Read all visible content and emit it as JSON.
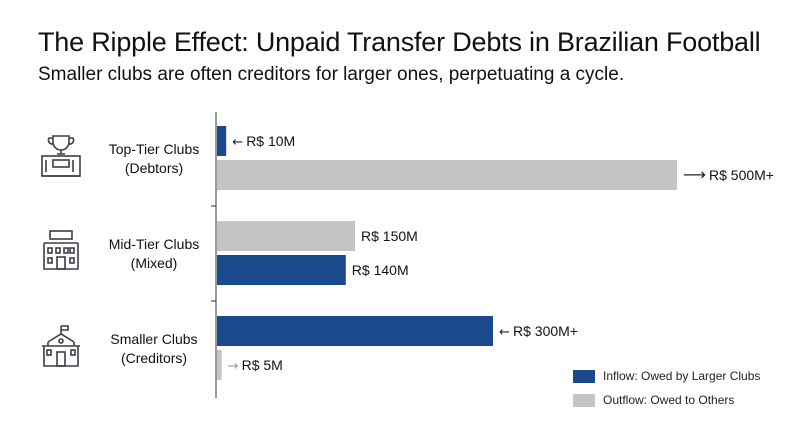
{
  "title": "The Ripple Effect: Unpaid Transfer Debts in Brazilian Football",
  "subtitle": "Smaller clubs are often creditors for larger ones, perpetuating a cycle.",
  "colors": {
    "inflow": "#1b4a8c",
    "outflow": "#c4c4c4",
    "axis": "#333333",
    "icon": "#3a3f47"
  },
  "chart_data": {
    "type": "bar",
    "orientation": "horizontal",
    "categories": [
      {
        "name": "Top-Tier Clubs",
        "sub": "(Debtors)",
        "icon": "trophy-building-icon"
      },
      {
        "name": "Mid-Tier Clubs",
        "sub": "(Mixed)",
        "icon": "stadium-building-icon"
      },
      {
        "name": "Smaller Clubs",
        "sub": "(Creditors)",
        "icon": "school-building-icon"
      }
    ],
    "bars": [
      {
        "category": 0,
        "series": "inflow",
        "value": 10,
        "label": "R$ 10M",
        "arrow": "←"
      },
      {
        "category": 0,
        "series": "outflow",
        "value": 500,
        "label": "R$ 500M+",
        "arrow": "⟶"
      },
      {
        "category": 1,
        "series": "outflow",
        "value": 150,
        "label": "R$ 150M",
        "arrow": ""
      },
      {
        "category": 1,
        "series": "inflow",
        "value": 140,
        "label": "R$ 140M",
        "arrow": ""
      },
      {
        "category": 2,
        "series": "inflow",
        "value": 300,
        "label": "R$ 300M+",
        "arrow": "←"
      },
      {
        "category": 2,
        "series": "outflow",
        "value": 5,
        "label": "R$ 5M",
        "arrow": "→"
      }
    ],
    "xlim": [
      0,
      500
    ],
    "unit": "R$ millions",
    "legend": [
      {
        "series": "inflow",
        "label": "Inflow: Owed by Larger Clubs"
      },
      {
        "series": "outflow",
        "label": "Outflow: Owed to Others"
      }
    ],
    "legend_position": "bottom-right"
  }
}
